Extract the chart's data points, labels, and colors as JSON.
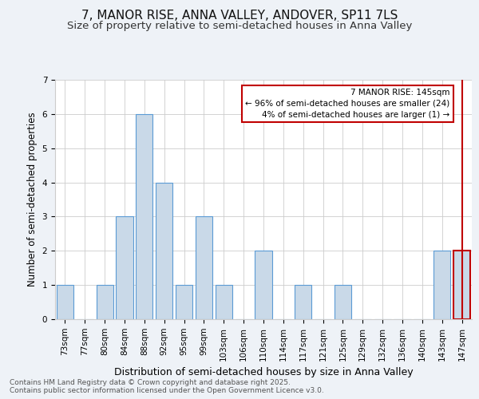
{
  "title": "7, MANOR RISE, ANNA VALLEY, ANDOVER, SP11 7LS",
  "subtitle": "Size of property relative to semi-detached houses in Anna Valley",
  "xlabel": "Distribution of semi-detached houses by size in Anna Valley",
  "ylabel": "Number of semi-detached properties",
  "categories": [
    "73sqm",
    "77sqm",
    "80sqm",
    "84sqm",
    "88sqm",
    "92sqm",
    "95sqm",
    "99sqm",
    "103sqm",
    "106sqm",
    "110sqm",
    "114sqm",
    "117sqm",
    "121sqm",
    "125sqm",
    "129sqm",
    "132sqm",
    "136sqm",
    "140sqm",
    "143sqm",
    "147sqm"
  ],
  "values": [
    1,
    0,
    1,
    3,
    6,
    4,
    1,
    3,
    1,
    0,
    2,
    0,
    1,
    0,
    1,
    0,
    0,
    0,
    0,
    2,
    2
  ],
  "bar_color": "#c9d9e8",
  "bar_edge_color": "#5b9bd5",
  "highlight_bar_index": 20,
  "vline_color": "#c00000",
  "annotation_box_text": "7 MANOR RISE: 145sqm\n← 96% of semi-detached houses are smaller (24)\n4% of semi-detached houses are larger (1) →",
  "annotation_box_color": "#c00000",
  "ylim": [
    0,
    7
  ],
  "yticks": [
    0,
    1,
    2,
    3,
    4,
    5,
    6,
    7
  ],
  "footer_text": "Contains HM Land Registry data © Crown copyright and database right 2025.\nContains public sector information licensed under the Open Government Licence v3.0.",
  "background_color": "#eef2f7",
  "plot_bg_color": "#ffffff",
  "title_fontsize": 11,
  "subtitle_fontsize": 9.5,
  "xlabel_fontsize": 9,
  "ylabel_fontsize": 8.5,
  "tick_fontsize": 7.5,
  "annot_fontsize": 7.5,
  "footer_fontsize": 6.5
}
